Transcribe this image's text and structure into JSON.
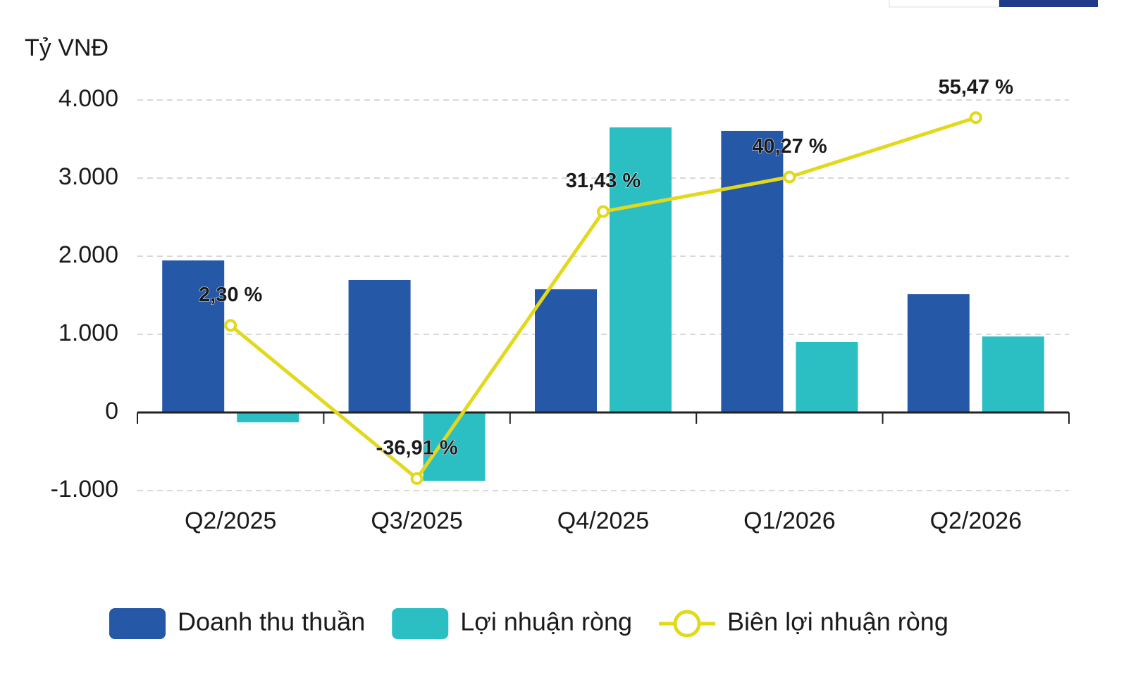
{
  "chart_data": {
    "type": "bar",
    "y_label": "Tỷ VNĐ",
    "categories": [
      "Q2/2025",
      "Q3/2025",
      "Q4/2025",
      "Q1/2026",
      "Q2/2026"
    ],
    "series": [
      {
        "name": "Doanh thu thuần",
        "color": "#2558a6",
        "values": [
          1946,
          1694,
          1577,
          3604,
          1514
        ]
      },
      {
        "name": "Lợi nhuận ròng",
        "color": "#2bbfc4",
        "values": [
          -126,
          -874,
          3649,
          901,
          973
        ]
      },
      {
        "name": "Biên lợi nhuận ròng",
        "type": "line",
        "axis": "y2",
        "color": "#e2d81c",
        "values": [
          2.3,
          -36.91,
          31.43,
          40.27,
          55.47
        ],
        "value_labels": [
          "2,30 %",
          "-36,91 %",
          "31,43 %",
          "40,27 %",
          "55,47 %"
        ]
      }
    ],
    "ylim": [
      -1000,
      4000
    ],
    "yticks": [
      {
        "value": -1000,
        "label": "-1.000"
      },
      0,
      {
        "value": 1000,
        "label": "1.000"
      },
      {
        "value": 2000,
        "label": "2.000"
      },
      {
        "value": 3000,
        "label": "3.000"
      },
      {
        "value": 4000,
        "label": "4.000"
      }
    ],
    "y2lim": [
      -40,
      60
    ],
    "grid": true,
    "legend": "bottom"
  }
}
